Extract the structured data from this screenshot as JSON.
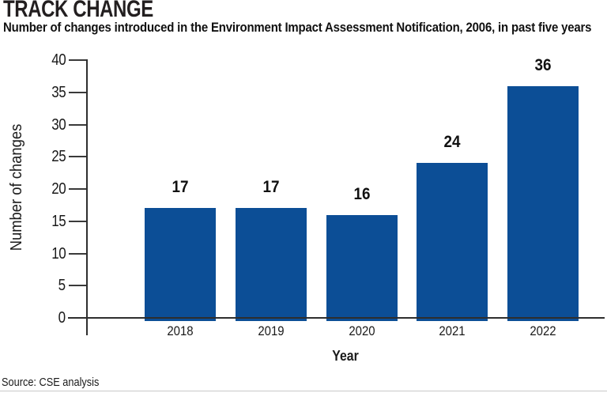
{
  "header": {
    "title": "TRACK CHANGE",
    "subtitle": "Number of changes introduced in the Environment Impact Assessment Notification, 2006, in past five years"
  },
  "chart_data": {
    "type": "bar",
    "title": "TRACK CHANGE",
    "subtitle": "Number of changes introduced in the Environment Impact Assessment Notification, 2006, in past five years",
    "categories": [
      "2018",
      "2019",
      "2020",
      "2021",
      "2022"
    ],
    "values": [
      17,
      17,
      16,
      24,
      36
    ],
    "value_labels": [
      "17",
      "17",
      "16",
      "24",
      "36"
    ],
    "xlabel": "Year",
    "ylabel": "Number of changes",
    "ylim": [
      0,
      40
    ],
    "yticks": [
      0,
      5,
      10,
      15,
      20,
      25,
      30,
      35,
      40
    ],
    "grid": false,
    "legend": "none",
    "bar_color": "#0c4e96",
    "axis_color": "#2e2e2e",
    "text_color": "#1a1a1a"
  },
  "footer": {
    "source": "Source: CSE analysis"
  }
}
